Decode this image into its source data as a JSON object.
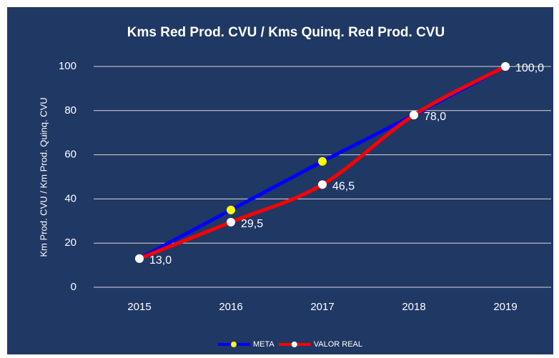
{
  "chart_data": {
    "type": "line",
    "title": "Kms Red Prod. CVU / Kms Quinq. Red Prod. CVU",
    "y_label": "Km Prod. CVU / Km Prod. Quinq. CVU",
    "categories": [
      "2015",
      "2016",
      "2017",
      "2018",
      "2019"
    ],
    "series": [
      {
        "name": "META",
        "color": "#0000ff",
        "marker_color": "#ffff00",
        "values": [
          13,
          35,
          57,
          78,
          100
        ]
      },
      {
        "name": "VALOR REAL",
        "color": "#ff0000",
        "marker_color": "#ffffff",
        "smooth": true,
        "values": [
          13,
          29.5,
          46.5,
          78,
          100
        ],
        "value_labels": [
          "13,0",
          "29,5",
          "46,5",
          "78,0",
          "100,0"
        ]
      }
    ],
    "ylim": [
      0,
      100
    ],
    "yticks": [
      0,
      20,
      40,
      60,
      80,
      100
    ],
    "grid": true,
    "legend": "bottom"
  }
}
